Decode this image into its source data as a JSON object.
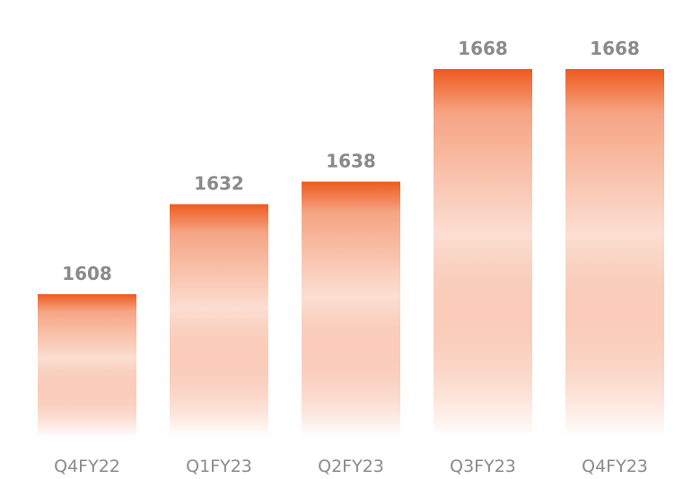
{
  "chart_data": {
    "type": "bar",
    "categories": [
      "Q4FY22",
      "Q1FY23",
      "Q2FY23",
      "Q3FY23",
      "Q4FY23"
    ],
    "values": [
      1608,
      1632,
      1638,
      1668,
      1668
    ],
    "title": "",
    "xlabel": "",
    "ylabel": "",
    "data_labels": [
      "1608",
      "1632",
      "1638",
      "1668",
      "1668"
    ],
    "grid": false,
    "legend": "none",
    "colors": {
      "bar_top": "#ee5a1e",
      "bar_bottom": "#ffffff",
      "label_text": "#8a8a8a"
    }
  }
}
